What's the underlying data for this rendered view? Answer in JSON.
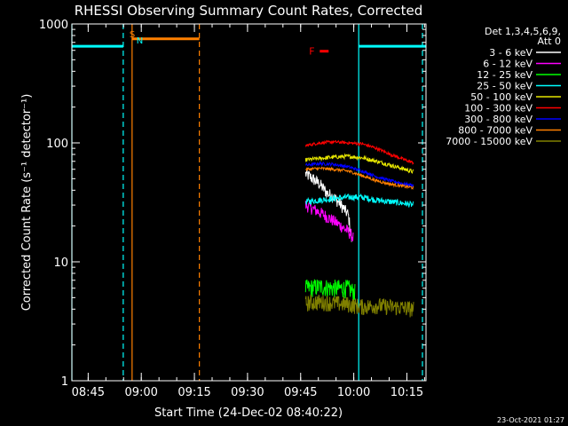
{
  "chart_data": {
    "type": "line",
    "title": "RHESSI Observing Summary Count Rates, Corrected",
    "xlabel": "Start Time (24-Dec-02 08:40:22)",
    "ylabel": "Corrected Count Rate (s⁻¹ detector⁻¹)",
    "scale": {
      "y": "log",
      "x": "time (minutes after 08:40:22)"
    },
    "xlim_minutes": [
      0,
      100
    ],
    "ylim": [
      1,
      1000
    ],
    "x_ticks": [
      {
        "label": "08:45",
        "minute": 4.6
      },
      {
        "label": "09:00",
        "minute": 19.6
      },
      {
        "label": "09:15",
        "minute": 34.6
      },
      {
        "label": "09:30",
        "minute": 49.6
      },
      {
        "label": "09:45",
        "minute": 64.6
      },
      {
        "label": "10:00",
        "minute": 79.6
      },
      {
        "label": "10:15",
        "minute": 94.6
      }
    ],
    "y_ticks": [
      {
        "label": "1",
        "value": 1
      },
      {
        "label": "10",
        "value": 10
      },
      {
        "label": "100",
        "value": 100
      },
      {
        "label": "1000",
        "value": 1000
      }
    ],
    "legend": {
      "position": "top-right",
      "header": [
        "Det 1,3,4,5,6,9,",
        "Att 0"
      ],
      "entries": [
        {
          "name": "3 - 6 keV",
          "color": "#ffffff"
        },
        {
          "name": "6 - 12 keV",
          "color": "#ff00ff"
        },
        {
          "name": "12 - 25 keV",
          "color": "#00ff00"
        },
        {
          "name": "25 - 50 keV",
          "color": "#00ffff"
        },
        {
          "name": "50 - 100 keV",
          "color": "#e6e600"
        },
        {
          "name": "100 - 300 keV",
          "color": "#ff0000"
        },
        {
          "name": "300 - 800 keV",
          "color": "#0000ff"
        },
        {
          "name": "800 - 7000 keV",
          "color": "#ff8000"
        },
        {
          "name": "7000 - 15000 keV",
          "color": "#808000"
        }
      ]
    },
    "series": [
      {
        "name": "3 - 6 keV",
        "color": "#ffffff",
        "x": [
          66,
          68,
          70,
          72,
          74,
          76,
          78,
          79
        ],
        "y": [
          55,
          50,
          45,
          38,
          35,
          30,
          25,
          15
        ],
        "noise": 0.12
      },
      {
        "name": "6 - 12 keV",
        "color": "#ff00ff",
        "x": [
          66,
          68,
          70,
          72,
          74,
          76,
          78,
          79.5
        ],
        "y": [
          30,
          28,
          26,
          24,
          22,
          20,
          18,
          16
        ],
        "noise": 0.12
      },
      {
        "name": "12 - 25 keV",
        "color": "#00ff00",
        "x": [
          66,
          70,
          74,
          78,
          80
        ],
        "y": [
          6,
          6.2,
          6,
          6,
          5.5
        ],
        "noise": 0.18
      },
      {
        "name": "25 - 50 keV",
        "color": "#00ffff",
        "x": [
          66,
          70,
          74,
          78,
          82,
          86,
          90,
          94,
          96.5
        ],
        "y": [
          32,
          33,
          34,
          35,
          35,
          33,
          32,
          31,
          30
        ],
        "noise": 0.06
      },
      {
        "name": "50 - 100 keV",
        "color": "#e6e600",
        "x": [
          66,
          70,
          74,
          78,
          82,
          86,
          90,
          94,
          96.5
        ],
        "y": [
          72,
          74,
          76,
          77,
          75,
          70,
          65,
          60,
          57
        ],
        "noise": 0.04
      },
      {
        "name": "100 - 300 keV",
        "color": "#ff0000",
        "x": [
          66,
          70,
          74,
          78,
          82,
          86,
          90,
          94,
          96.5
        ],
        "y": [
          95,
          100,
          102,
          100,
          98,
          90,
          80,
          72,
          68
        ],
        "noise": 0.03
      },
      {
        "name": "300 - 800 keV",
        "color": "#0000ff",
        "x": [
          66,
          70,
          74,
          78,
          82,
          86,
          90,
          94,
          96.5
        ],
        "y": [
          65,
          67,
          66,
          63,
          58,
          52,
          48,
          45,
          44
        ],
        "noise": 0.03
      },
      {
        "name": "800 - 7000 keV",
        "color": "#ff8000",
        "x": [
          66,
          70,
          74,
          78,
          82,
          86,
          90,
          94,
          96.5
        ],
        "y": [
          60,
          61,
          60,
          58,
          53,
          48,
          45,
          43,
          42
        ],
        "noise": 0.03
      },
      {
        "name": "7000 - 15000 keV",
        "color": "#808000",
        "x": [
          66,
          70,
          74,
          78,
          82,
          86,
          90,
          94,
          96.5
        ],
        "y": [
          4.5,
          4.6,
          4.5,
          4.4,
          4.2,
          4.3,
          4.2,
          4.1,
          4.0
        ],
        "noise": 0.16
      }
    ],
    "state_bars": [
      {
        "label": "",
        "color": "#00ffff",
        "y": 650,
        "x": [
          0,
          14.5
        ]
      },
      {
        "label": "",
        "color": "#00ffff",
        "y": 650,
        "x": [
          81,
          100
        ]
      },
      {
        "label": "",
        "color": "#ff8000",
        "y": 750,
        "x": [
          17,
          36
        ]
      },
      {
        "label": "F",
        "color": "#ff0000",
        "y": 590,
        "x": [
          70,
          72.5
        ]
      }
    ],
    "markers": [
      {
        "label": "S",
        "color": "#ff8000",
        "minute": 17
      },
      {
        "label": "N",
        "color": "#00ffff",
        "minute": 19
      }
    ],
    "vertical_lines": [
      {
        "color": "#00ffff",
        "style": "solid",
        "minute": 0
      },
      {
        "color": "#00ffff",
        "style": "dashed",
        "minute": 14.5
      },
      {
        "color": "#ff8000",
        "style": "solid",
        "minute": 17
      },
      {
        "color": "#ff8000",
        "style": "dashed",
        "minute": 36
      },
      {
        "color": "#00ffff",
        "style": "solid",
        "minute": 81
      },
      {
        "color": "#00ffff",
        "style": "dashed",
        "minute": 99
      }
    ],
    "footer_timestamp": "23-Oct-2021 01:27"
  }
}
